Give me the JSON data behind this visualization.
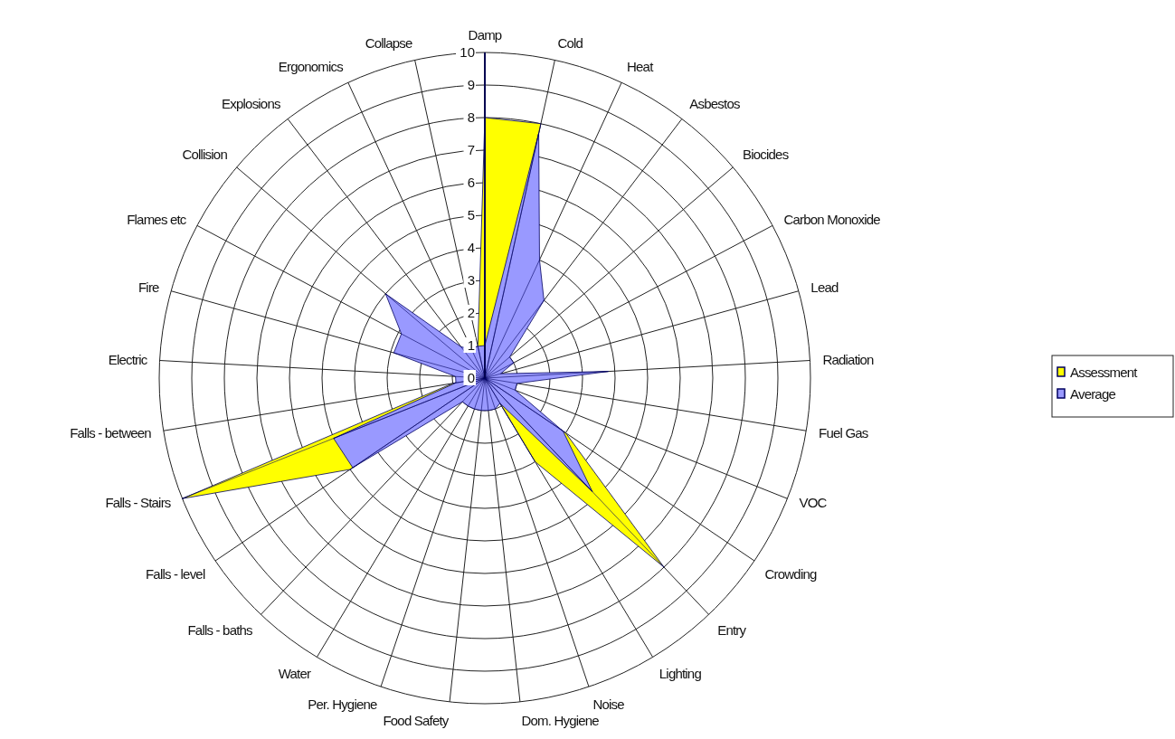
{
  "chart_data": {
    "type": "radar",
    "categories": [
      "Damp",
      "Cold",
      "Heat",
      "Asbestos",
      "Biocides",
      "Carbon Monoxide",
      "Lead",
      "Radiation",
      "Fuel Gas",
      "VOC",
      "Crowding",
      "Entry",
      "Lighting",
      "Noise",
      "Dom. Hygiene",
      "Food Safety",
      "Per. Hygiene",
      "Water",
      "Falls - baths",
      "Falls - level",
      "Falls - Stairs",
      "Falls - between",
      "Electric",
      "Fire",
      "Flames etc",
      "Collision",
      "Explosions",
      "Ergonomics",
      "Collapse"
    ],
    "series": [
      {
        "name": "Assessment",
        "color": "#ffff00",
        "values": [
          8,
          8,
          0,
          0,
          0,
          0,
          0,
          0,
          0,
          0,
          3,
          8,
          3,
          0,
          0,
          0,
          0,
          0,
          0,
          5,
          10,
          1,
          0,
          0,
          0,
          0,
          0,
          0,
          1
        ]
      },
      {
        "name": "Average",
        "color": "#9999ff",
        "values": [
          1,
          7.7,
          4,
          3,
          1,
          1,
          0.5,
          3.8,
          1,
          1,
          2.9,
          4.8,
          0.9,
          1,
          1,
          1,
          1,
          1,
          1,
          4.9,
          5,
          0.9,
          0.9,
          2.9,
          2.9,
          4,
          1.2,
          1,
          1
        ]
      }
    ],
    "ylim": [
      0,
      10
    ],
    "yticks": [
      0,
      1,
      2,
      3,
      4,
      5,
      6,
      7,
      8,
      9,
      10
    ],
    "grid": true,
    "legend": "right"
  }
}
